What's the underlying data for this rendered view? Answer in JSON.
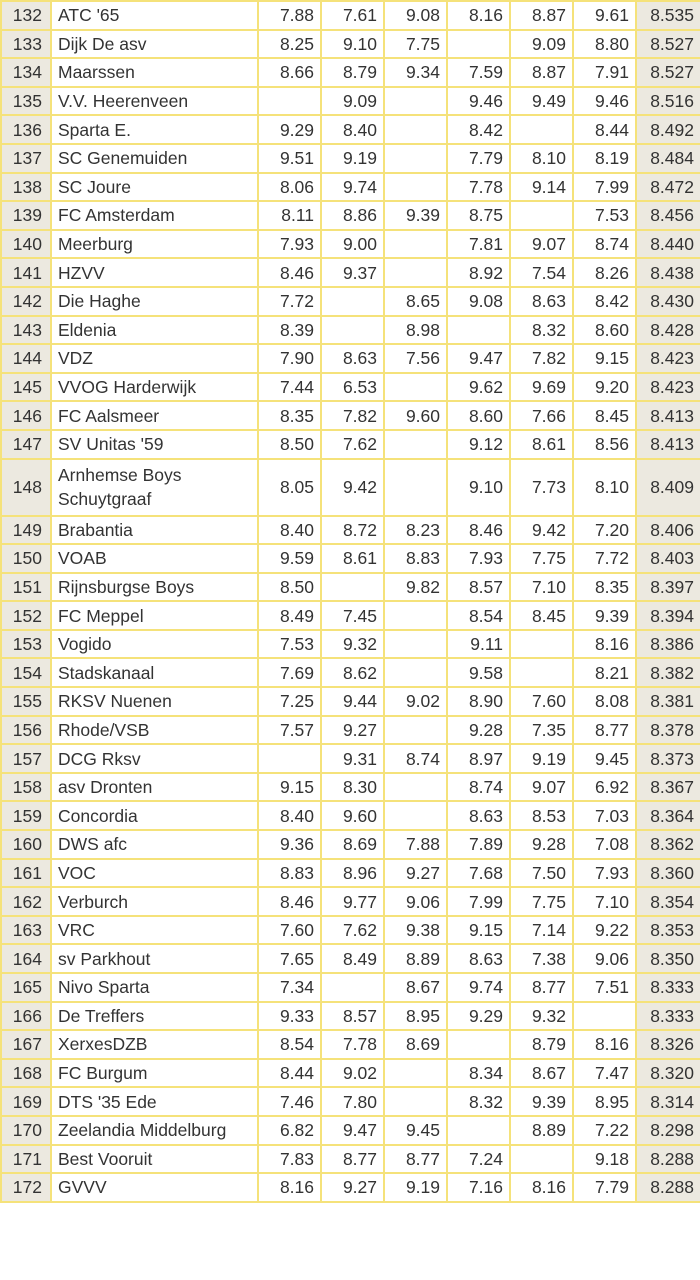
{
  "rows": [
    {
      "rank": "132",
      "club": "ATC '65",
      "scores": [
        "7.88",
        "7.61",
        "9.08",
        "8.16",
        "8.87",
        "9.61"
      ],
      "avg": "8.535"
    },
    {
      "rank": "133",
      "club": "Dijk De asv",
      "scores": [
        "8.25",
        "9.10",
        "7.75",
        "",
        "9.09",
        "8.80"
      ],
      "avg": "8.527"
    },
    {
      "rank": "134",
      "club": "Maarssen",
      "scores": [
        "8.66",
        "8.79",
        "9.34",
        "7.59",
        "8.87",
        "7.91"
      ],
      "avg": "8.527"
    },
    {
      "rank": "135",
      "club": "V.V. Heerenveen",
      "scores": [
        "",
        "9.09",
        "",
        "9.46",
        "9.49",
        "9.46"
      ],
      "avg": "8.516"
    },
    {
      "rank": "136",
      "club": "Sparta E.",
      "scores": [
        "9.29",
        "8.40",
        "",
        "8.42",
        "",
        "8.44"
      ],
      "avg": "8.492"
    },
    {
      "rank": "137",
      "club": "SC Genemuiden",
      "scores": [
        "9.51",
        "9.19",
        "",
        "7.79",
        "8.10",
        "8.19"
      ],
      "avg": "8.484"
    },
    {
      "rank": "138",
      "club": "SC Joure",
      "scores": [
        "8.06",
        "9.74",
        "",
        "7.78",
        "9.14",
        "7.99"
      ],
      "avg": "8.472"
    },
    {
      "rank": "139",
      "club": "FC Amsterdam",
      "scores": [
        "8.11",
        "8.86",
        "9.39",
        "8.75",
        "",
        "7.53"
      ],
      "avg": "8.456"
    },
    {
      "rank": "140",
      "club": "Meerburg",
      "scores": [
        "7.93",
        "9.00",
        "",
        "7.81",
        "9.07",
        "8.74"
      ],
      "avg": "8.440"
    },
    {
      "rank": "141",
      "club": "HZVV",
      "scores": [
        "8.46",
        "9.37",
        "",
        "8.92",
        "7.54",
        "8.26"
      ],
      "avg": "8.438"
    },
    {
      "rank": "142",
      "club": "Die Haghe",
      "scores": [
        "7.72",
        "",
        "8.65",
        "9.08",
        "8.63",
        "8.42"
      ],
      "avg": "8.430"
    },
    {
      "rank": "143",
      "club": "Eldenia",
      "scores": [
        "8.39",
        "",
        "8.98",
        "",
        "8.32",
        "8.60"
      ],
      "avg": "8.428"
    },
    {
      "rank": "144",
      "club": "VDZ",
      "scores": [
        "7.90",
        "8.63",
        "7.56",
        "9.47",
        "7.82",
        "9.15"
      ],
      "avg": "8.423"
    },
    {
      "rank": "145",
      "club": "VVOG Harderwijk",
      "scores": [
        "7.44",
        "6.53",
        "",
        "9.62",
        "9.69",
        "9.20"
      ],
      "avg": "8.423"
    },
    {
      "rank": "146",
      "club": "FC Aalsmeer",
      "scores": [
        "8.35",
        "7.82",
        "9.60",
        "8.60",
        "7.66",
        "8.45"
      ],
      "avg": "8.413"
    },
    {
      "rank": "147",
      "club": "SV Unitas '59",
      "scores": [
        "8.50",
        "7.62",
        "",
        "9.12",
        "8.61",
        "8.56"
      ],
      "avg": "8.413"
    },
    {
      "rank": "148",
      "club": "Arnhemse Boys Schuytgraaf",
      "scores": [
        "8.05",
        "9.42",
        "",
        "9.10",
        "7.73",
        "8.10"
      ],
      "avg": "8.409"
    },
    {
      "rank": "149",
      "club": "Brabantia",
      "scores": [
        "8.40",
        "8.72",
        "8.23",
        "8.46",
        "9.42",
        "7.20"
      ],
      "avg": "8.406"
    },
    {
      "rank": "150",
      "club": "VOAB",
      "scores": [
        "9.59",
        "8.61",
        "8.83",
        "7.93",
        "7.75",
        "7.72"
      ],
      "avg": "8.403"
    },
    {
      "rank": "151",
      "club": "Rijnsburgse Boys",
      "scores": [
        "8.50",
        "",
        "9.82",
        "8.57",
        "7.10",
        "8.35"
      ],
      "avg": "8.397"
    },
    {
      "rank": "152",
      "club": "FC Meppel",
      "scores": [
        "8.49",
        "7.45",
        "",
        "8.54",
        "8.45",
        "9.39"
      ],
      "avg": "8.394"
    },
    {
      "rank": "153",
      "club": "Vogido",
      "scores": [
        "7.53",
        "9.32",
        "",
        "9.11",
        "",
        "8.16"
      ],
      "avg": "8.386"
    },
    {
      "rank": "154",
      "club": "Stadskanaal",
      "scores": [
        "7.69",
        "8.62",
        "",
        "9.58",
        "",
        "8.21"
      ],
      "avg": "8.382"
    },
    {
      "rank": "155",
      "club": "RKSV Nuenen",
      "scores": [
        "7.25",
        "9.44",
        "9.02",
        "8.90",
        "7.60",
        "8.08"
      ],
      "avg": "8.381"
    },
    {
      "rank": "156",
      "club": "Rhode/VSB",
      "scores": [
        "7.57",
        "9.27",
        "",
        "9.28",
        "7.35",
        "8.77"
      ],
      "avg": "8.378"
    },
    {
      "rank": "157",
      "club": "DCG Rksv",
      "scores": [
        "",
        "9.31",
        "8.74",
        "8.97",
        "9.19",
        "9.45"
      ],
      "avg": "8.373"
    },
    {
      "rank": "158",
      "club": "asv Dronten",
      "scores": [
        "9.15",
        "8.30",
        "",
        "8.74",
        "9.07",
        "6.92"
      ],
      "avg": "8.367"
    },
    {
      "rank": "159",
      "club": "Concordia",
      "scores": [
        "8.40",
        "9.60",
        "",
        "8.63",
        "8.53",
        "7.03"
      ],
      "avg": "8.364"
    },
    {
      "rank": "160",
      "club": "DWS afc",
      "scores": [
        "9.36",
        "8.69",
        "7.88",
        "7.89",
        "9.28",
        "7.08"
      ],
      "avg": "8.362"
    },
    {
      "rank": "161",
      "club": "VOC",
      "scores": [
        "8.83",
        "8.96",
        "9.27",
        "7.68",
        "7.50",
        "7.93"
      ],
      "avg": "8.360"
    },
    {
      "rank": "162",
      "club": "Verburch",
      "scores": [
        "8.46",
        "9.77",
        "9.06",
        "7.99",
        "7.75",
        "7.10"
      ],
      "avg": "8.354"
    },
    {
      "rank": "163",
      "club": "VRC",
      "scores": [
        "7.60",
        "7.62",
        "9.38",
        "9.15",
        "7.14",
        "9.22"
      ],
      "avg": "8.353"
    },
    {
      "rank": "164",
      "club": "sv Parkhout",
      "scores": [
        "7.65",
        "8.49",
        "8.89",
        "8.63",
        "7.38",
        "9.06"
      ],
      "avg": "8.350"
    },
    {
      "rank": "165",
      "club": "Nivo Sparta",
      "scores": [
        "7.34",
        "",
        "8.67",
        "9.74",
        "8.77",
        "7.51"
      ],
      "avg": "8.333"
    },
    {
      "rank": "166",
      "club": "De Treffers",
      "scores": [
        "9.33",
        "8.57",
        "8.95",
        "9.29",
        "9.32",
        ""
      ],
      "avg": "8.333"
    },
    {
      "rank": "167",
      "club": "XerxesDZB",
      "scores": [
        "8.54",
        "7.78",
        "8.69",
        "",
        "8.79",
        "8.16"
      ],
      "avg": "8.326"
    },
    {
      "rank": "168",
      "club": "FC Burgum",
      "scores": [
        "8.44",
        "9.02",
        "",
        "8.34",
        "8.67",
        "7.47"
      ],
      "avg": "8.320"
    },
    {
      "rank": "169",
      "club": "DTS '35 Ede",
      "scores": [
        "7.46",
        "7.80",
        "",
        "8.32",
        "9.39",
        "8.95"
      ],
      "avg": "8.314"
    },
    {
      "rank": "170",
      "club": "Zeelandia Middelburg",
      "scores": [
        "6.82",
        "9.47",
        "9.45",
        "",
        "8.89",
        "7.22"
      ],
      "avg": "8.298"
    },
    {
      "rank": "171",
      "club": "Best Vooruit",
      "scores": [
        "7.83",
        "8.77",
        "8.77",
        "7.24",
        "",
        "9.18"
      ],
      "avg": "8.288"
    },
    {
      "rank": "172",
      "club": "GVVV",
      "scores": [
        "8.16",
        "9.27",
        "9.19",
        "7.16",
        "8.16",
        "7.79"
      ],
      "avg": "8.288"
    }
  ]
}
